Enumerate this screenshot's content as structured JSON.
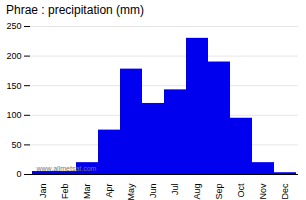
{
  "chart_data": {
    "type": "bar",
    "title": "Phrae : precipitation (mm)",
    "categories": [
      "Jan",
      "Feb",
      "Mar",
      "Apr",
      "May",
      "Jun",
      "Jul",
      "Aug",
      "Sep",
      "Oct",
      "Nov",
      "Dec"
    ],
    "values": [
      5,
      5,
      20,
      75,
      178,
      120,
      143,
      230,
      190,
      95,
      20,
      3
    ],
    "color": "#0000ee",
    "ylim": [
      0,
      250
    ],
    "yticks": [
      0,
      50,
      100,
      150,
      200,
      250
    ],
    "grid": true,
    "annotations": [
      "www.allmetsat.com"
    ]
  }
}
